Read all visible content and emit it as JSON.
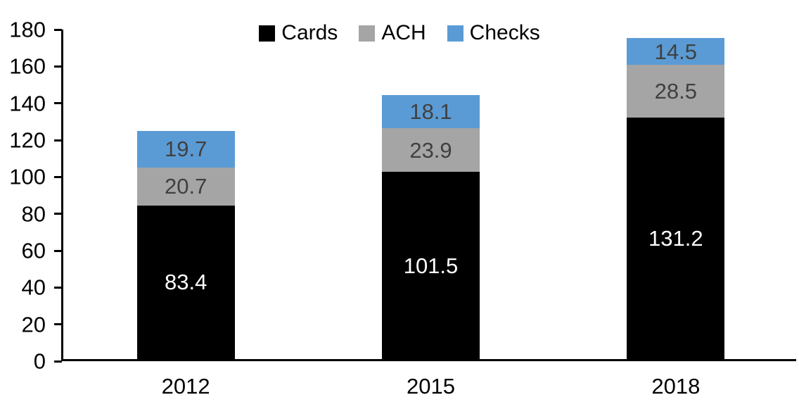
{
  "chart_data": {
    "type": "bar",
    "stacked": true,
    "title": "",
    "xlabel": "",
    "ylabel": "",
    "categories": [
      "2012",
      "2015",
      "2018"
    ],
    "series": [
      {
        "name": "Cards",
        "color": "#000000",
        "label_color": "#ffffff",
        "values": [
          83.4,
          101.5,
          131.2
        ]
      },
      {
        "name": "ACH",
        "color": "#A5A5A5",
        "label_color": "#404040",
        "values": [
          20.7,
          23.9,
          28.5
        ]
      },
      {
        "name": "Checks",
        "color": "#5B9BD5",
        "label_color": "#404040",
        "values": [
          19.7,
          18.1,
          14.5
        ]
      }
    ],
    "totals": [
      123.8,
      143.5,
      174.2
    ],
    "ylim": [
      0,
      180
    ],
    "y_ticks": [
      0,
      20,
      40,
      60,
      80,
      100,
      120,
      140,
      160,
      180
    ],
    "value_label_decimals": 1,
    "grid": false,
    "legend_position": "top-center",
    "axis_color": "#000000"
  }
}
